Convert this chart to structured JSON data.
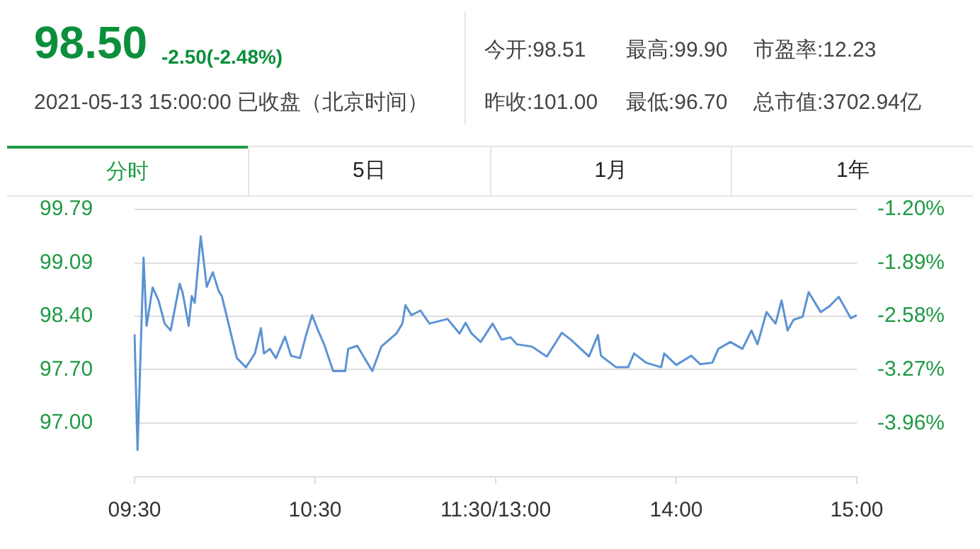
{
  "chart_data": {
    "type": "line",
    "title": "98.50",
    "subtitle": "-2.50(-2.48%)",
    "annotations": [
      "2021-05-13 15:00:00 已收盘（北京时间）",
      "今开:98.51",
      "最高:99.90",
      "市盈率:12.23",
      "昨收:101.00",
      "最低:96.70",
      "总市值:3702.94亿",
      "分时",
      "5日",
      "1月",
      "1年"
    ],
    "categories": [
      "09:30",
      null,
      null,
      null,
      null,
      null,
      null,
      null,
      null,
      null,
      null,
      null,
      null,
      null,
      null,
      null,
      null,
      null,
      null,
      null,
      null,
      null,
      null,
      null,
      null,
      null,
      null,
      null,
      null,
      null,
      null,
      null,
      null,
      null,
      null,
      null,
      null,
      null,
      null,
      null,
      null,
      null,
      null,
      null,
      null,
      null,
      null,
      null,
      null,
      null,
      null,
      null,
      null,
      null,
      null,
      null,
      null,
      null,
      null,
      null,
      "10:30",
      null,
      null,
      null,
      null,
      null,
      null,
      null,
      null,
      null,
      null,
      null,
      null,
      null,
      null,
      null,
      null,
      null,
      null,
      null,
      null,
      null,
      null,
      null,
      null,
      null,
      null,
      null,
      null,
      null,
      null,
      null,
      null,
      null,
      null,
      null,
      null,
      null,
      null,
      null,
      null,
      null,
      null,
      null,
      null,
      null,
      null,
      null,
      null,
      null,
      null,
      null,
      null,
      null,
      null,
      null,
      null,
      null,
      null,
      null,
      "11:30/13:00",
      null,
      null,
      null,
      null,
      null,
      null,
      null,
      null,
      null,
      null,
      null,
      null,
      null,
      null,
      null,
      null,
      null,
      null,
      null,
      null,
      null,
      null,
      null,
      null,
      null,
      null,
      null,
      null,
      null,
      null,
      null,
      null,
      null,
      null,
      null,
      null,
      null,
      null,
      null,
      null,
      null,
      null,
      null,
      null,
      null,
      null,
      null,
      null,
      null,
      null,
      null,
      null,
      null,
      null,
      null,
      null,
      null,
      null,
      null,
      "14:00",
      null,
      null,
      null,
      null,
      null,
      null,
      null,
      null,
      null,
      null,
      null,
      null,
      null,
      null,
      null,
      null,
      null,
      null,
      null,
      null,
      null,
      null,
      null,
      null,
      null,
      null,
      null,
      null,
      null,
      null,
      null,
      null,
      null,
      null,
      null,
      null,
      null,
      null,
      null,
      null,
      null,
      null,
      null,
      null,
      null,
      null,
      null,
      null,
      null,
      null,
      null,
      null,
      null,
      null,
      null,
      null,
      null,
      null,
      null,
      "15:00"
    ],
    "series": [
      {
        "color": "#5b93d3",
        "values": [
          98.16,
          96.65,
          null,
          99.16,
          98.27,
          null,
          98.77,
          null,
          98.6,
          null,
          98.3,
          null,
          98.21,
          null,
          null,
          98.82,
          98.7,
          null,
          98.27,
          98.66,
          98.57,
          null,
          99.44,
          null,
          98.78,
          null,
          98.97,
          null,
          98.72,
          98.66,
          null,
          null,
          null,
          null,
          97.85,
          null,
          null,
          97.73,
          null,
          null,
          97.91,
          null,
          98.24,
          97.91,
          null,
          97.97,
          null,
          97.85,
          null,
          null,
          98.13,
          null,
          97.88,
          null,
          null,
          97.85,
          null,
          98.15,
          null,
          98.41,
          null,
          98.21,
          null,
          98.03,
          null,
          null,
          97.68,
          null,
          null,
          null,
          97.68,
          97.97,
          null,
          null,
          98.01,
          null,
          null,
          null,
          null,
          97.68,
          null,
          null,
          98.0,
          null,
          null,
          null,
          null,
          98.17,
          null,
          98.3,
          98.54,
          null,
          98.41,
          null,
          null,
          98.47,
          null,
          null,
          98.3,
          null,
          null,
          null,
          null,
          null,
          98.36,
          null,
          null,
          null,
          98.17,
          null,
          98.31,
          null,
          98.17,
          null,
          null,
          98.06,
          null,
          null,
          null,
          98.3,
          null,
          null,
          98.09,
          null,
          null,
          98.12,
          null,
          98.03,
          null,
          null,
          null,
          null,
          98.0,
          null,
          null,
          null,
          null,
          97.87,
          null,
          null,
          null,
          null,
          98.18,
          null,
          null,
          98.09,
          null,
          null,
          null,
          null,
          null,
          97.87,
          null,
          null,
          98.15,
          97.88,
          null,
          null,
          null,
          null,
          97.73,
          null,
          null,
          null,
          97.73,
          null,
          97.91,
          null,
          null,
          null,
          97.79,
          null,
          null,
          null,
          null,
          97.73,
          97.91,
          null,
          null,
          null,
          97.76,
          null,
          null,
          null,
          null,
          97.88,
          null,
          null,
          97.77,
          null,
          null,
          null,
          97.79,
          null,
          97.97,
          null,
          null,
          null,
          98.06,
          null,
          null,
          null,
          97.97,
          null,
          null,
          98.21,
          null,
          98.03,
          null,
          null,
          98.45,
          null,
          null,
          98.3,
          null,
          98.6,
          null,
          98.21,
          null,
          98.35,
          null,
          null,
          98.39,
          null,
          98.71,
          null,
          null,
          null,
          98.45,
          null,
          null,
          98.53,
          null,
          null,
          98.65,
          null,
          null,
          null,
          98.37,
          null,
          98.41
        ]
      }
    ],
    "ylim": [
      96.3,
      99.79
    ],
    "yticks": [
      {
        "value": 97.0,
        "label": "97.00"
      },
      {
        "value": 97.7,
        "label": "97.70"
      },
      {
        "value": 98.4,
        "label": "98.40"
      },
      {
        "value": 99.09,
        "label": "99.09"
      },
      {
        "value": 99.79,
        "label": "99.79"
      }
    ],
    "y2lim": [
      -4.65,
      -1.2
    ],
    "y2ticks": [
      {
        "value": -3.96,
        "label": "-3.96%"
      },
      {
        "value": -3.27,
        "label": "-3.27%"
      },
      {
        "value": -2.58,
        "label": "-2.58%"
      },
      {
        "value": -1.89,
        "label": "-1.89%"
      },
      {
        "value": -1.2,
        "label": "-1.20%"
      }
    ],
    "grid": "y",
    "marker": "none",
    "line_style": "solid",
    "legend": false
  }
}
